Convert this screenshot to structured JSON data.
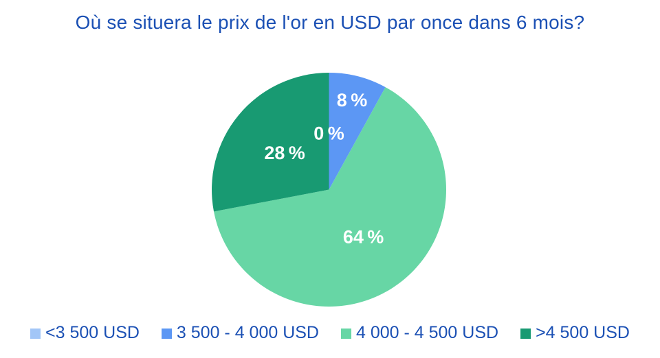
{
  "chart_data": {
    "type": "pie",
    "title": "Où se situera le prix de l'or en USD par once dans 6 mois?",
    "categories": [
      "<3 500 USD",
      "3 500 - 4 000 USD",
      "4 000 - 4 500 USD",
      ">4 500 USD"
    ],
    "values": [
      0,
      8,
      64,
      28
    ],
    "unit": "%",
    "slice_labels": [
      "0 %",
      "8 %",
      "64 %",
      "28 %"
    ],
    "colors": [
      "#A2C6F7",
      "#5C97F4",
      "#67D6A5",
      "#189A72"
    ],
    "label_color": "#FFFFFF",
    "legend_position": "bottom",
    "start_angle_deg": 0,
    "direction": "clockwise",
    "label_radius_factors": [
      0.48,
      0.79,
      0.5,
      0.49
    ]
  },
  "colors": {
    "title_text": "#1B50B4",
    "legend_text": "#1B50B4",
    "background": "#FFFFFF"
  }
}
